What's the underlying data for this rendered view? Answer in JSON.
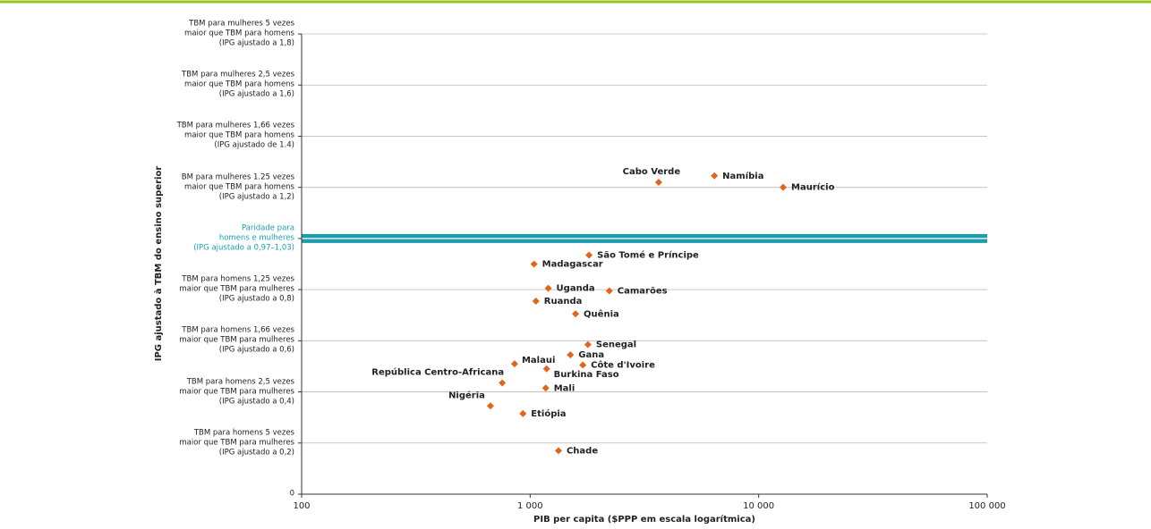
{
  "chart_data": {
    "type": "scatter",
    "xlabel": "PIB per capita ($PPP em escala logarítmica)",
    "ylabel": "IPG ajustado à TBM do ensino superior",
    "xscale": "log",
    "xlim": [
      100,
      100000
    ],
    "xticks": [
      100,
      {
        "value": 1000,
        "label": "1 000"
      },
      {
        "value": 10000,
        "label": "10 000"
      },
      {
        "value": 100000,
        "label": "100 000"
      }
    ],
    "ylim": [
      0,
      1.8
    ],
    "yticks": [
      0,
      {
        "value": 0.2,
        "label": "TBM para homens 5 vezes\nmaior que TBM para mulheres\n(IPG ajustado a 0,2)"
      },
      {
        "value": 0.4,
        "label": "TBM para homens 2,5 vezes\nmaior que TBM para mulheres\n(IPG ajustado a 0,4)"
      },
      {
        "value": 0.6,
        "label": "TBM para homens 1,66 vezes\nmaior que TBM para mulheres\n(IPG ajustado a 0,6)"
      },
      {
        "value": 0.8,
        "label": "TBM para homens 1,25 vezes\nmaior que TBM para mulheres\n(IPG ajustado a 0,8)"
      },
      {
        "value": 1.0,
        "label": "Paridade para\nhomens e mulheres\n(IPG ajustado a 0,97–1,03)"
      },
      {
        "value": 1.2,
        "label": "BM para mulheres 1.25 vezes\nmaior que TBM para homens\n(IPG ajustado a 1,2)"
      },
      {
        "value": 1.4,
        "label": "TBM para mulheres 1,66 vezes\nmaior que TBM para homens\n(IPG ajustado de 1.4)"
      },
      {
        "value": 1.6,
        "label": "TBM para mulheres 2,5 vezes\nmaior que TBM para homens\n(IPG ajustado a 1,6)"
      },
      {
        "value": 1.8,
        "label": "TBM para mulheres 5 vezes\nmaior que TBM para homens\n(IPG ajustado a 1,8)"
      }
    ],
    "parity": 1.0,
    "grid": true,
    "color": "#e0661c",
    "labels": [
      "Cabo Verde",
      "Namíbia",
      "Maurício",
      "São Tomé e Príncipe",
      "Madagascar",
      "Uganda",
      "Camarões",
      "Ruanda",
      "Quênia",
      "Senegal",
      "Gana",
      "Malaui",
      "Côte d'Ivoire",
      "Burkina Faso",
      "República Centro-Africana",
      "Mali",
      "Nigéria",
      "Etiópia",
      "Chade"
    ],
    "x": [
      3650,
      6400,
      12800,
      1810,
      1040,
      1200,
      2220,
      1060,
      1580,
      1790,
      1500,
      855,
      1700,
      1180,
      755,
      1170,
      670,
      930,
      1330
    ],
    "y": [
      1.22,
      1.245,
      1.2,
      0.935,
      0.9,
      0.805,
      0.795,
      0.755,
      0.705,
      0.585,
      0.545,
      0.51,
      0.505,
      0.49,
      0.435,
      0.415,
      0.345,
      0.315,
      0.17
    ]
  }
}
